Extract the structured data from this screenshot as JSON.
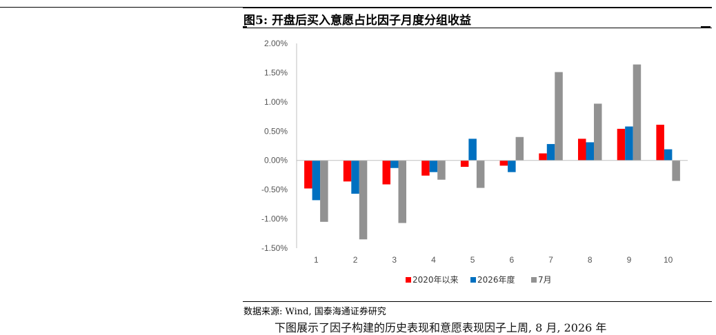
{
  "figure": {
    "title": "图5: 开盘后买入意愿占比因子月度分组收益",
    "source": "数据来源: Wind, 国泰海通证券研究",
    "cut_text": "下图展示了因子构建的历史表现和意愿表现因子上周, 8 月, 2026 年"
  },
  "chart_data": {
    "type": "bar",
    "categories": [
      "1",
      "2",
      "3",
      "4",
      "5",
      "6",
      "7",
      "8",
      "9",
      "10"
    ],
    "series": [
      {
        "name": "2020年以来",
        "color": "#ff0000",
        "values": [
          -0.48,
          -0.36,
          -0.41,
          -0.26,
          -0.11,
          -0.09,
          0.12,
          0.37,
          0.54,
          0.61
        ]
      },
      {
        "name": "2026年度",
        "color": "#0070c0",
        "values": [
          -0.68,
          -0.57,
          -0.13,
          -0.2,
          0.37,
          -0.2,
          0.28,
          0.31,
          0.58,
          0.19
        ]
      },
      {
        "name": "7月",
        "color": "#929292",
        "values": [
          -1.05,
          -1.35,
          -1.07,
          -0.33,
          -0.47,
          0.4,
          1.51,
          0.97,
          1.64,
          -0.35
        ]
      }
    ],
    "ylim": [
      -1.5,
      2.0
    ],
    "yticks": [
      "2.00%",
      "1.50%",
      "1.00%",
      "0.50%",
      "0.00%",
      "-0.50%",
      "-1.00%",
      "-1.50%"
    ],
    "ytick_values": [
      2.0,
      1.5,
      1.0,
      0.5,
      0.0,
      -0.5,
      -1.0,
      -1.5
    ],
    "legend_position": "bottom",
    "grid": false
  }
}
